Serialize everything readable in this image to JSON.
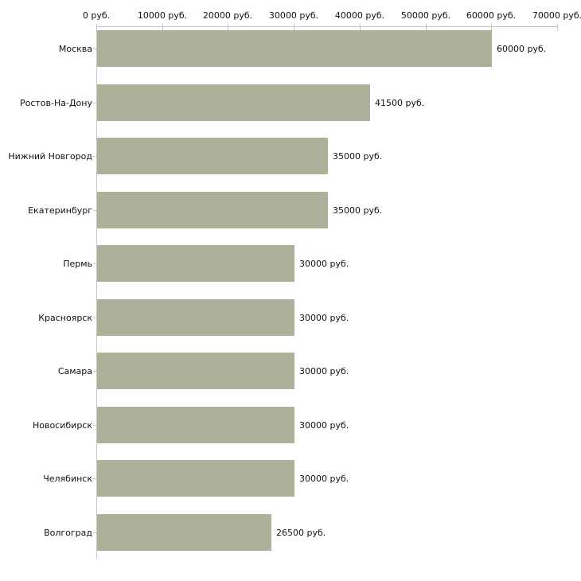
{
  "chart_data": {
    "type": "bar",
    "orientation": "horizontal",
    "title": "",
    "xlabel": "",
    "ylabel": "",
    "categories": [
      "Москва",
      "Ростов-На-Дону",
      "Нижний Новгород",
      "Екатеринбург",
      "Пермь",
      "Красноярск",
      "Самара",
      "Новосибирск",
      "Челябинск",
      "Волгоград"
    ],
    "values": [
      60000,
      41500,
      35000,
      35000,
      30000,
      30000,
      30000,
      30000,
      30000,
      26500
    ],
    "value_labels": [
      "60000 руб.",
      "41500 руб.",
      "35000 руб.",
      "35000 руб.",
      "30000 руб.",
      "30000 руб.",
      "30000 руб.",
      "30000 руб.",
      "30000 руб.",
      "26500 руб."
    ],
    "x_axis": {
      "position": "top",
      "min": 0,
      "max": 70000,
      "tick_values": [
        0,
        10000,
        20000,
        30000,
        40000,
        50000,
        60000,
        70000
      ],
      "tick_labels": [
        "0 руб.",
        "10000 руб.",
        "20000 руб.",
        "30000 руб.",
        "40000 руб.",
        "50000 руб.",
        "60000 руб.",
        "70000 руб."
      ]
    },
    "grid": false,
    "legend": false,
    "colors": {
      "bar": "#acb199",
      "axis_line": "#c3c3c3",
      "tick_mark": "#c5c79e",
      "text": "#111111",
      "background": "#ffffff"
    }
  }
}
